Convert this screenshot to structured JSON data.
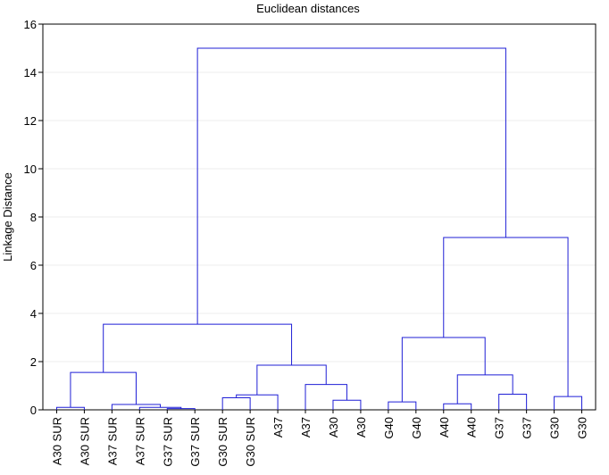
{
  "chart_data": {
    "type": "dendrogram",
    "title": "Euclidean distances",
    "ylabel": "Linkage Distance",
    "xlabel": "",
    "ylim": [
      0,
      16
    ],
    "yticks": [
      0,
      2,
      4,
      6,
      8,
      10,
      12,
      14,
      16
    ],
    "grid": true,
    "line_color": "#1f1fd6",
    "leaves": [
      "A30 SUR",
      "A30 SUR",
      "A37 SUR",
      "A37 SUR",
      "G37 SUR",
      "G37 SUR",
      "G30 SUR",
      "G30 SUR",
      "A37",
      "A37",
      "A30",
      "A30",
      "G40",
      "G40",
      "A40",
      "A40",
      "G37",
      "G37",
      "G30",
      "G30"
    ],
    "merges": [
      {
        "left": "L5",
        "right": "L6",
        "height": 0.05,
        "id": "m1"
      },
      {
        "left": "L4",
        "right": "m1",
        "height": 0.1,
        "id": "m2"
      },
      {
        "left": "L1",
        "right": "L2",
        "height": 0.1,
        "id": "m3"
      },
      {
        "left": "L3",
        "right": "m2",
        "height": 0.22,
        "id": "m4"
      },
      {
        "left": "L15",
        "right": "L16",
        "height": 0.25,
        "id": "m5"
      },
      {
        "left": "L13",
        "right": "L14",
        "height": 0.33,
        "id": "m6"
      },
      {
        "left": "L11",
        "right": "L12",
        "height": 0.4,
        "id": "m7"
      },
      {
        "left": "L7",
        "right": "L8",
        "height": 0.5,
        "id": "m8"
      },
      {
        "left": "L19",
        "right": "L20",
        "height": 0.55,
        "id": "m9"
      },
      {
        "left": "m8",
        "right": "L9",
        "height": 0.62,
        "id": "m10"
      },
      {
        "left": "L17",
        "right": "L18",
        "height": 0.65,
        "id": "m11"
      },
      {
        "left": "L10",
        "right": "m7",
        "height": 1.05,
        "id": "m12"
      },
      {
        "left": "m5",
        "right": "m11",
        "height": 1.45,
        "id": "m13"
      },
      {
        "left": "m3",
        "right": "m4",
        "height": 1.55,
        "id": "m14"
      },
      {
        "left": "m10",
        "right": "m12",
        "height": 1.85,
        "id": "m15"
      },
      {
        "left": "m6",
        "right": "m13",
        "height": 3.0,
        "id": "m16"
      },
      {
        "left": "m14",
        "right": "m15",
        "height": 3.55,
        "id": "m17"
      },
      {
        "left": "m16",
        "right": "m9",
        "height": 7.15,
        "id": "m18"
      },
      {
        "left": "m17",
        "right": "m18",
        "height": 15.0,
        "id": "m19"
      }
    ]
  }
}
